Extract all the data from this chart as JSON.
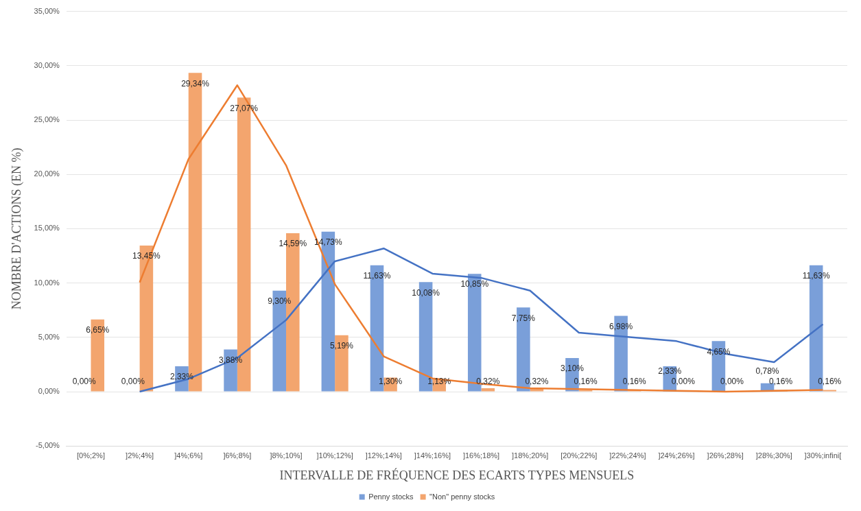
{
  "chart_data": {
    "type": "bar",
    "xlabel": "INTERVALLE DE FRÉQUENCE DES ECARTS TYPES MENSUELS",
    "ylabel": "NOMBRE D'ACTIONS (EN %)",
    "categories": [
      "[0%;2%]",
      "]2%;4%]",
      "]4%;6%]",
      "]6%;8%]",
      "]8%;10%]",
      "]10%;12%]",
      "]12%;14%]",
      "]14%;16%]",
      "]16%;18%]",
      "]18%;20%]",
      "[20%;22%]",
      "]22%;24%]",
      "]24%;26%]",
      "]26%;28%]",
      "]28%;30%]",
      "]30%;infini["
    ],
    "series": [
      {
        "name": "Penny stocks",
        "color": "#7a9fd9",
        "values": [
          0,
          0,
          2.33,
          3.88,
          9.3,
          14.73,
          11.63,
          10.08,
          10.85,
          7.75,
          3.1,
          6.98,
          2.33,
          4.65,
          0.78,
          11.63
        ],
        "value_labels": [
          "0,00%",
          "0,00%",
          "2,33%",
          "3,88%",
          "9,30%",
          "14,73%",
          "11,63%",
          "10,08%",
          "10,85%",
          "7,75%",
          "3,10%",
          "6,98%",
          "2,33%",
          "4,65%",
          "0,78%",
          "11,63%"
        ]
      },
      {
        "name": "\"Non\" penny stocks",
        "color": "#f3a56e",
        "values": [
          6.65,
          13.45,
          29.34,
          27.07,
          14.59,
          5.19,
          1.3,
          1.13,
          0.32,
          0.32,
          0.16,
          0.16,
          0,
          0,
          0.16,
          0.16
        ],
        "value_labels": [
          "6,65%",
          "13,45%",
          "29,34%",
          "27,07%",
          "14,59%",
          "5,19%",
          "1,30%",
          "1,13%",
          "0,32%",
          "0,32%",
          "0,16%",
          "0,16%",
          "0,00%",
          "0,00%",
          "0,16%",
          "0,16%"
        ]
      },
      {
        "type": "line",
        "color": "#4472c4",
        "values": [
          null,
          0,
          1.17,
          3.1,
          6.59,
          12.0,
          13.18,
          10.86,
          10.47,
          9.3,
          5.43,
          5.04,
          4.65,
          3.49,
          2.71,
          6.2
        ]
      },
      {
        "type": "line",
        "color": "#ed7d31",
        "values": [
          null,
          10.05,
          21.4,
          28.2,
          20.83,
          9.89,
          3.25,
          1.22,
          0.73,
          0.32,
          0.24,
          0.16,
          0.08,
          0,
          0.08,
          0.16
        ]
      }
    ],
    "ylim": [
      -5,
      35
    ],
    "yticks": [
      {
        "value": -5,
        "label": "-5,00%"
      },
      {
        "value": 0,
        "label": "0,00%"
      },
      {
        "value": 5,
        "label": "5,00%"
      },
      {
        "value": 10,
        "label": "10,00%"
      },
      {
        "value": 15,
        "label": "15,00%"
      },
      {
        "value": 20,
        "label": "20,00%"
      },
      {
        "value": 25,
        "label": "25,00%"
      },
      {
        "value": 30,
        "label": "30,00%"
      },
      {
        "value": 35,
        "label": "35,00%"
      }
    ],
    "grid": "y",
    "legend": "bottom",
    "marker": "none",
    "line_style": "solid"
  }
}
